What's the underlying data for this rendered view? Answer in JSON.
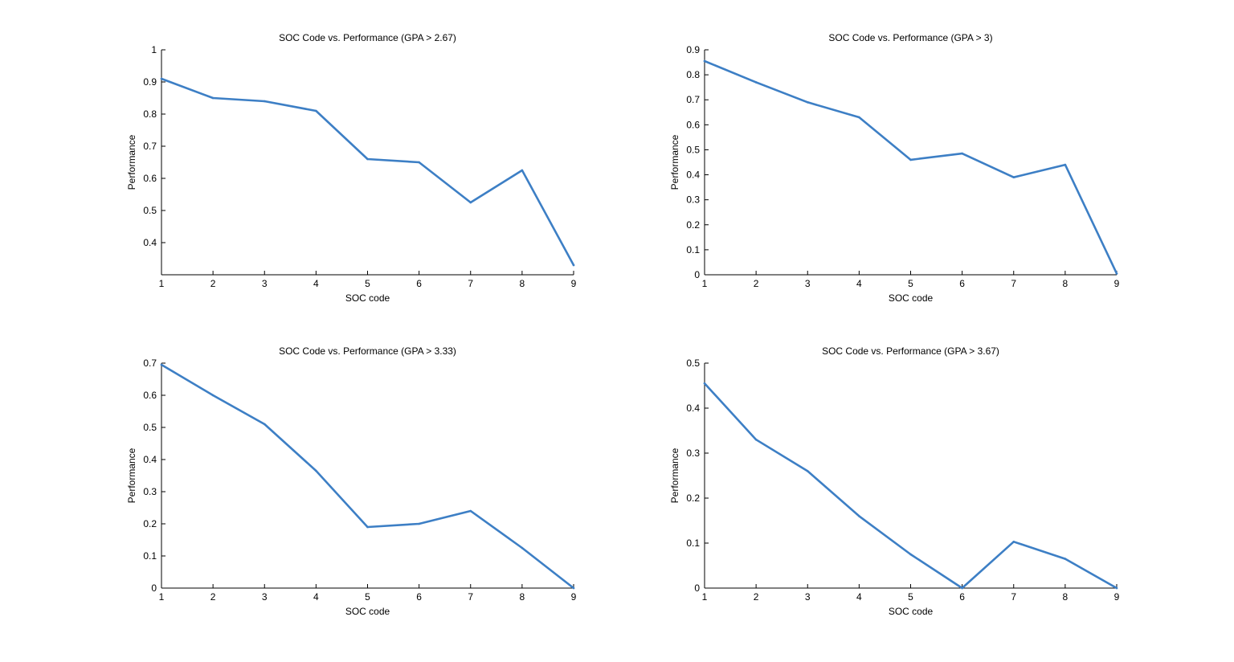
{
  "chart_data": [
    {
      "type": "line",
      "title": "SOC Code vs. Performance (GPA > 2.67)",
      "xlabel": "SOC code",
      "ylabel": "Performance",
      "xlim": [
        1,
        9
      ],
      "ylim": [
        0.3,
        1.0
      ],
      "xticks": [
        "1",
        "2",
        "3",
        "4",
        "5",
        "6",
        "7",
        "8",
        "9"
      ],
      "yticks": [
        "0.4",
        "0.5",
        "0.6",
        "0.7",
        "0.8",
        "0.9",
        "1"
      ],
      "grid": false,
      "series": [
        {
          "x": [
            1,
            2,
            3,
            4,
            5,
            6,
            7,
            8,
            9
          ],
          "values": [
            0.91,
            0.85,
            0.84,
            0.81,
            0.66,
            0.65,
            0.525,
            0.625,
            0.33
          ]
        }
      ]
    },
    {
      "type": "line",
      "title": "SOC Code vs. Performance (GPA > 3)",
      "xlabel": "SOC code",
      "ylabel": "Performance",
      "xlim": [
        1,
        9
      ],
      "ylim": [
        0,
        0.9
      ],
      "xticks": [
        "1",
        "2",
        "3",
        "4",
        "5",
        "6",
        "7",
        "8",
        "9"
      ],
      "yticks": [
        "0",
        "0.1",
        "0.2",
        "0.3",
        "0.4",
        "0.5",
        "0.6",
        "0.7",
        "0.8",
        "0.9"
      ],
      "grid": false,
      "series": [
        {
          "x": [
            1,
            2,
            3,
            4,
            5,
            6,
            7,
            8,
            9
          ],
          "values": [
            0.855,
            0.77,
            0.69,
            0.63,
            0.46,
            0.485,
            0.39,
            0.44,
            0.005
          ]
        }
      ]
    },
    {
      "type": "line",
      "title": "SOC Code vs. Performance (GPA > 3.33)",
      "xlabel": "SOC code",
      "ylabel": "Performance",
      "xlim": [
        1,
        9
      ],
      "ylim": [
        0,
        0.7
      ],
      "xticks": [
        "1",
        "2",
        "3",
        "4",
        "5",
        "6",
        "7",
        "8",
        "9"
      ],
      "yticks": [
        "0",
        "0.1",
        "0.2",
        "0.3",
        "0.4",
        "0.5",
        "0.6",
        "0.7"
      ],
      "grid": false,
      "series": [
        {
          "x": [
            1,
            2,
            3,
            4,
            5,
            6,
            7,
            8,
            9
          ],
          "values": [
            0.695,
            0.6,
            0.51,
            0.365,
            0.19,
            0.2,
            0.24,
            0.125,
            0.0
          ]
        }
      ]
    },
    {
      "type": "line",
      "title": "SOC Code vs. Performance (GPA > 3.67)",
      "xlabel": "SOC code",
      "ylabel": "Performance",
      "xlim": [
        1,
        9
      ],
      "ylim": [
        0,
        0.5
      ],
      "xticks": [
        "1",
        "2",
        "3",
        "4",
        "5",
        "6",
        "7",
        "8",
        "9"
      ],
      "yticks": [
        "0",
        "0.1",
        "0.2",
        "0.3",
        "0.4",
        "0.5"
      ],
      "grid": false,
      "series": [
        {
          "x": [
            1,
            2,
            3,
            4,
            5,
            6,
            7,
            8,
            9
          ],
          "values": [
            0.455,
            0.33,
            0.26,
            0.16,
            0.075,
            0.0,
            0.103,
            0.065,
            0.0
          ]
        }
      ]
    }
  ],
  "colors": {
    "line": "#3d7fc5",
    "axis": "#000000",
    "background": "#ffffff"
  }
}
